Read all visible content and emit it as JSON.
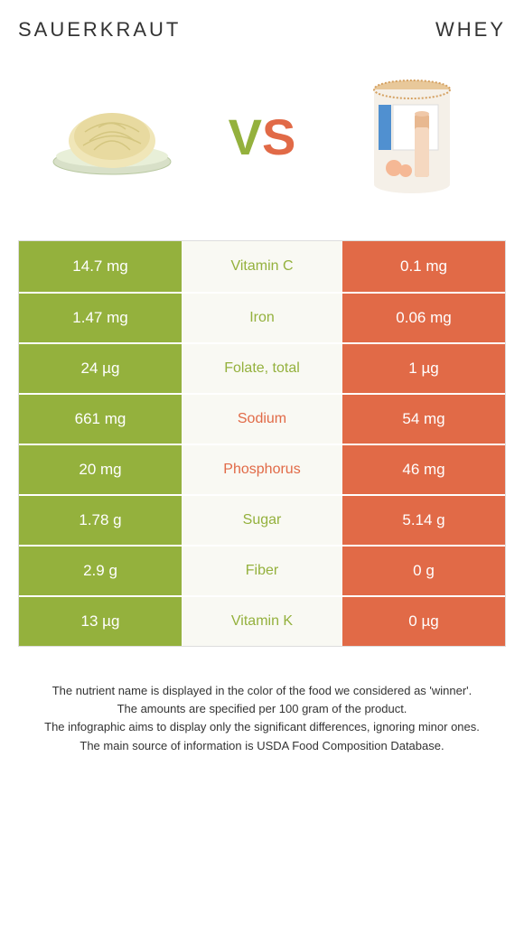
{
  "header": {
    "left_title": "Sauerkraut",
    "right_title": "Whey"
  },
  "vs": {
    "v": "V",
    "s": "S"
  },
  "colors": {
    "left": "#94b13d",
    "right": "#e16a47",
    "mid_bg": "#f9f9f3"
  },
  "table": {
    "rows": [
      {
        "left": "14.7 mg",
        "label": "Vitamin C",
        "right": "0.1 mg",
        "winner": "left"
      },
      {
        "left": "1.47 mg",
        "label": "Iron",
        "right": "0.06 mg",
        "winner": "left"
      },
      {
        "left": "24 µg",
        "label": "Folate, total",
        "right": "1 µg",
        "winner": "left"
      },
      {
        "left": "661 mg",
        "label": "Sodium",
        "right": "54 mg",
        "winner": "right"
      },
      {
        "left": "20 mg",
        "label": "Phosphorus",
        "right": "46 mg",
        "winner": "right"
      },
      {
        "left": "1.78 g",
        "label": "Sugar",
        "right": "5.14 g",
        "winner": "left"
      },
      {
        "left": "2.9 g",
        "label": "Fiber",
        "right": "0 g",
        "winner": "left"
      },
      {
        "left": "13 µg",
        "label": "Vitamin K",
        "right": "0 µg",
        "winner": "left"
      }
    ]
  },
  "footer": {
    "lines": [
      "The nutrient name is displayed in the color of the food we considered as 'winner'.",
      "The amounts are specified per 100 gram of the product.",
      "The infographic aims to display only the significant differences, ignoring minor ones.",
      "The main source of information is USDA Food Composition Database."
    ]
  }
}
